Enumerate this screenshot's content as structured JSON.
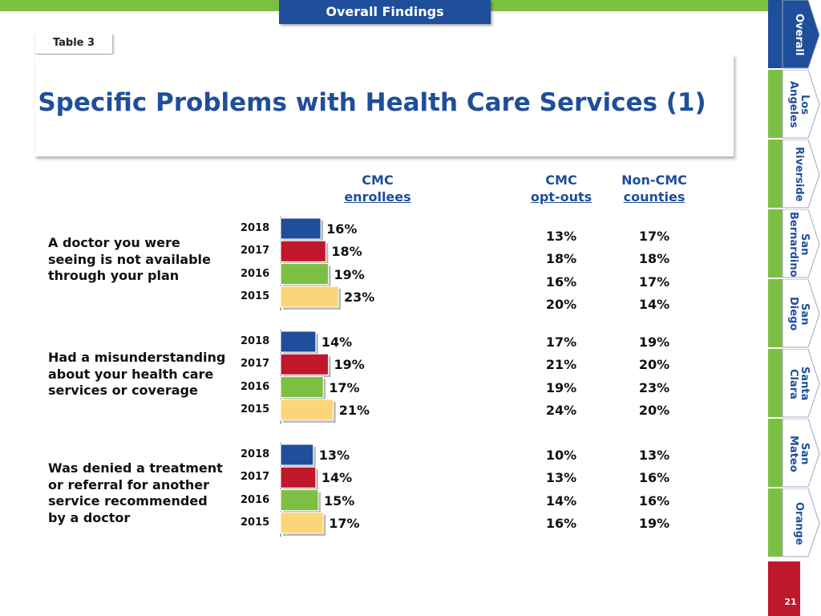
{
  "header": {
    "section_tab": "Overall Findings",
    "table_label": "Table 3",
    "title": "Specific Problems with Health Care Services (1)"
  },
  "columns": {
    "cmc_enrollees": [
      "CMC",
      "enrollees"
    ],
    "cmc_optouts": [
      "CMC",
      "opt-outs"
    ],
    "non_cmc": [
      "Non-CMC",
      "counties"
    ]
  },
  "sidebar": {
    "tabs": [
      {
        "lines": [
          "Overall"
        ],
        "active": true
      },
      {
        "lines": [
          "Los",
          "Angeles"
        ],
        "active": false
      },
      {
        "lines": [
          "Riverside"
        ],
        "active": false
      },
      {
        "lines": [
          "San",
          "Bernardino"
        ],
        "active": false
      },
      {
        "lines": [
          "San",
          "Diego"
        ],
        "active": false
      },
      {
        "lines": [
          "Santa",
          "Clara"
        ],
        "active": false
      },
      {
        "lines": [
          "San",
          "Mateo"
        ],
        "active": false
      },
      {
        "lines": [
          "Orange"
        ],
        "active": false
      }
    ],
    "active_color": "#1f4e9a",
    "inactive_color": "#7cc043"
  },
  "page_number": "21",
  "chart_data": {
    "type": "bar",
    "orientation": "horizontal",
    "title": "Specific Problems with Health Care Services (1)",
    "series_years": [
      "2018",
      "2017",
      "2016",
      "2015"
    ],
    "series_colors": [
      "#1f4e9a",
      "#c0182b",
      "#7cc043",
      "#fcd57a"
    ],
    "xlim": [
      0,
      100
    ],
    "groups": [
      {
        "label": [
          "A doctor you were",
          "seeing is not available",
          "through your plan"
        ],
        "enrollees": [
          16,
          18,
          19,
          23
        ],
        "enrollees_labels": [
          "16%",
          "18%",
          "19%",
          "23%"
        ],
        "optouts": [
          "13%",
          "18%",
          "16%",
          "20%"
        ],
        "noncmc": [
          "17%",
          "18%",
          "17%",
          "14%"
        ]
      },
      {
        "label": [
          "Had a misunderstanding",
          "about your health care",
          "services or coverage"
        ],
        "enrollees": [
          14,
          19,
          17,
          21
        ],
        "enrollees_labels": [
          "14%",
          "19%",
          "17%",
          "21%"
        ],
        "optouts": [
          "17%",
          "21%",
          "19%",
          "24%"
        ],
        "noncmc": [
          "19%",
          "20%",
          "23%",
          "20%"
        ]
      },
      {
        "label": [
          "Was denied a treatment",
          "or referral for another",
          "service recommended",
          "by a doctor"
        ],
        "enrollees": [
          13,
          14,
          15,
          17
        ],
        "enrollees_labels": [
          "13%",
          "14%",
          "15%",
          "17%"
        ],
        "optouts": [
          "10%",
          "13%",
          "14%",
          "16%"
        ],
        "noncmc": [
          "13%",
          "16%",
          "16%",
          "19%"
        ]
      }
    ]
  }
}
